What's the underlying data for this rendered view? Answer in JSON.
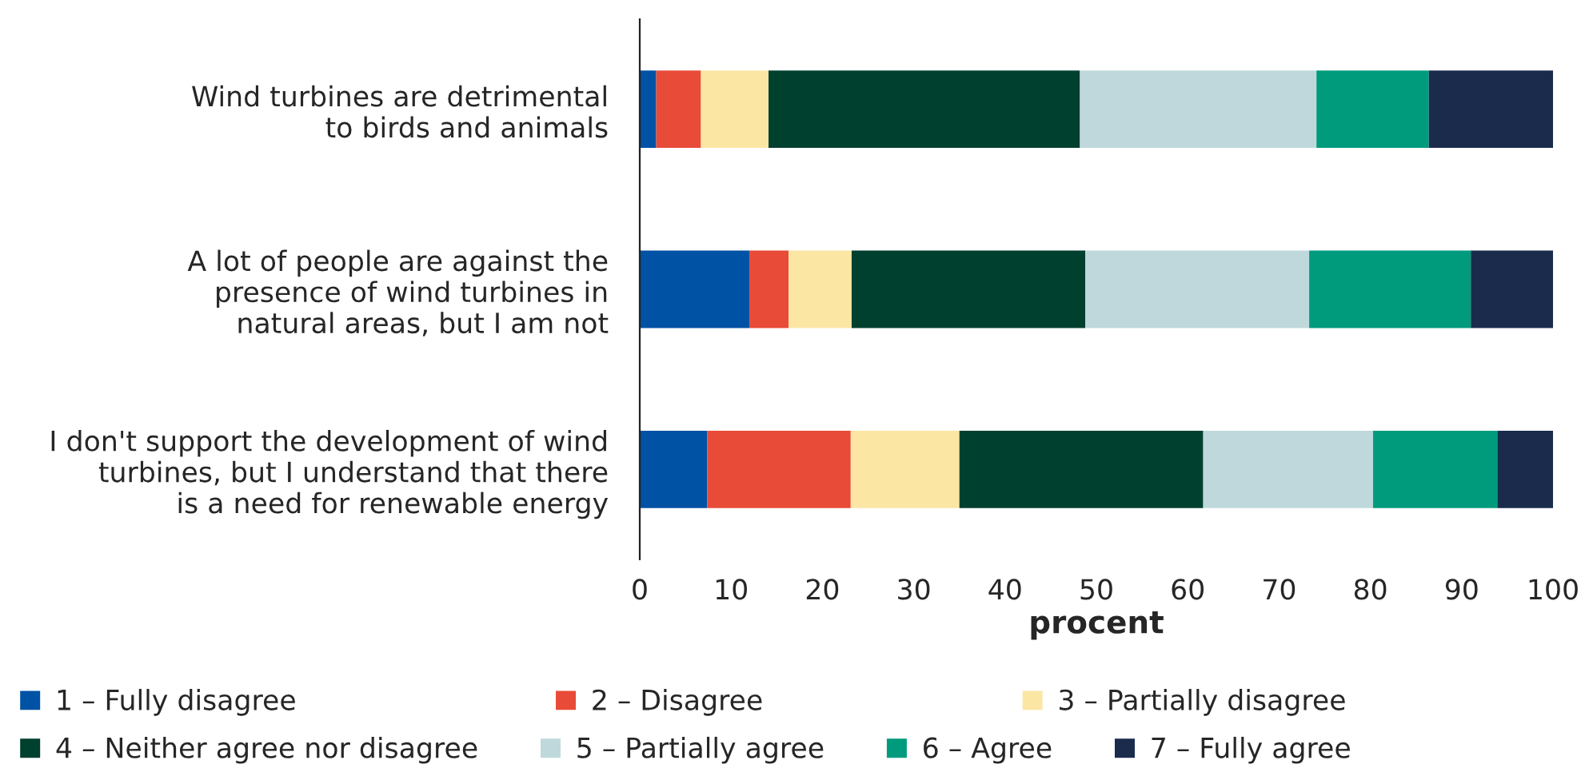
{
  "chart_data": {
    "type": "bar",
    "orientation": "horizontal",
    "stacked": true,
    "xlabel": "procent",
    "categories": [
      "Wind turbines are detrimental\nto birds and animals",
      "A lot of people are against the\npresence of wind turbines in\nnatural areas, but I am not",
      "I don't support the development of wind\nturbines, but I understand that there\nis a need for renewable energy"
    ],
    "series": [
      {
        "name": "1 – Fully disagree",
        "color": "#0052a5",
        "values": [
          1.8,
          12.0,
          7.4
        ]
      },
      {
        "name": "2 – Disagree",
        "color": "#e84b37",
        "values": [
          4.9,
          4.3,
          15.7
        ]
      },
      {
        "name": "3 – Partially disagree",
        "color": "#fbe6a4",
        "values": [
          7.4,
          6.9,
          11.9
        ]
      },
      {
        "name": "4 – Neither agree nor disagree",
        "color": "#00402e",
        "values": [
          34.1,
          25.6,
          26.7
        ]
      },
      {
        "name": "5 – Partially agree",
        "color": "#bfd8dc",
        "values": [
          25.9,
          24.5,
          18.6
        ]
      },
      {
        "name": "6 – Agree",
        "color": "#009b7d",
        "values": [
          12.3,
          17.7,
          13.6
        ]
      },
      {
        "name": "7 – Fully agree",
        "color": "#1a2b4c",
        "values": [
          13.6,
          9.0,
          6.1
        ]
      }
    ],
    "xlim": [
      0,
      100
    ],
    "xticks": [
      0,
      10,
      20,
      30,
      40,
      50,
      60,
      70,
      80,
      90,
      100
    ],
    "legend": "bottom"
  }
}
